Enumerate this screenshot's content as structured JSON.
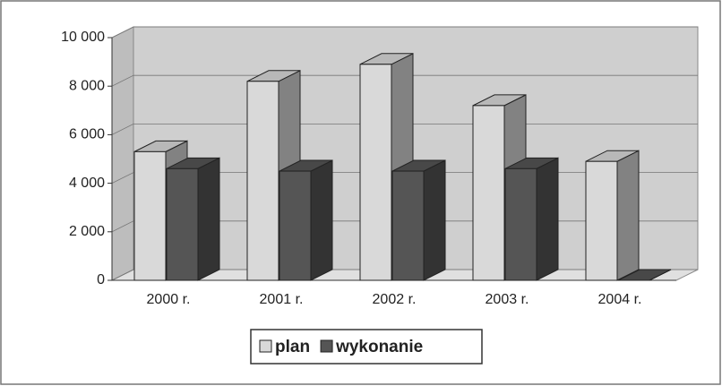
{
  "chart_data": {
    "type": "bar3d",
    "categories": [
      "2000 r.",
      "2001 r.",
      "2002 r.",
      "2003 r.",
      "2004 r."
    ],
    "series": [
      {
        "name": "plan",
        "color": "#d9d9d9",
        "values": [
          5300,
          8200,
          8900,
          7200,
          4900
        ]
      },
      {
        "name": "wykonanie",
        "color": "#555555",
        "values": [
          4600,
          4500,
          4500,
          4600,
          0
        ]
      }
    ],
    "ylim": [
      0,
      10000
    ],
    "yticks": [
      0,
      {
        "value": 2000,
        "label": "2 000"
      },
      {
        "value": 4000,
        "label": "4 000"
      },
      {
        "value": 6000,
        "label": "6 000"
      },
      {
        "value": 8000,
        "label": "8 000"
      },
      {
        "value": 10000,
        "label": "10 000"
      }
    ],
    "grid": true,
    "legend": "bottom"
  }
}
